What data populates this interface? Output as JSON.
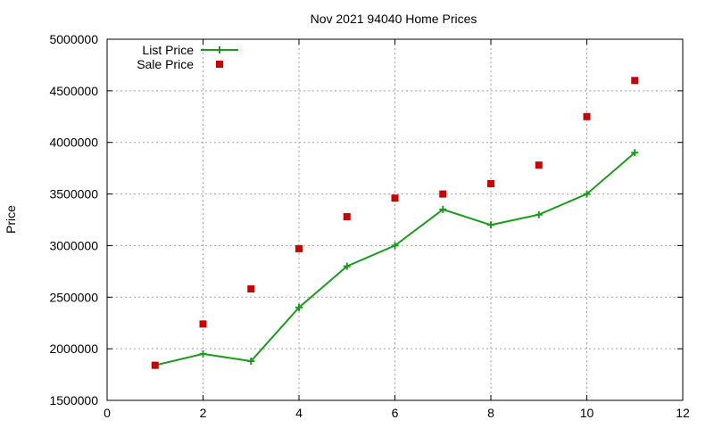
{
  "chart_data": {
    "type": "line",
    "title": "Nov 2021 94040 Home Prices",
    "xlabel": "",
    "ylabel": "Price",
    "xlim": [
      0,
      12
    ],
    "ylim": [
      1500000,
      5000000
    ],
    "xticks": [
      0,
      2,
      4,
      6,
      8,
      10,
      12
    ],
    "yticks": [
      1500000,
      2000000,
      2500000,
      3000000,
      3500000,
      4000000,
      4500000,
      5000000
    ],
    "grid": true,
    "legend_position": "top-left",
    "series": [
      {
        "name": "List Price",
        "style": "line-plus",
        "color": "#1a9c1a",
        "x": [
          1,
          2,
          3,
          4,
          5,
          6,
          7,
          8,
          9,
          10,
          11
        ],
        "y": [
          1840000,
          1950000,
          1880000,
          2400000,
          2800000,
          3000000,
          3350000,
          3200000,
          3300000,
          3500000,
          3900000
        ]
      },
      {
        "name": "Sale Price",
        "style": "square-points",
        "color": "#cc0000",
        "x": [
          1,
          2,
          3,
          4,
          5,
          6,
          7,
          8,
          9,
          10,
          11
        ],
        "y": [
          1840000,
          2240000,
          2580000,
          2970000,
          3280000,
          3460000,
          3500000,
          3600000,
          3780000,
          4250000,
          4600000
        ]
      }
    ]
  }
}
